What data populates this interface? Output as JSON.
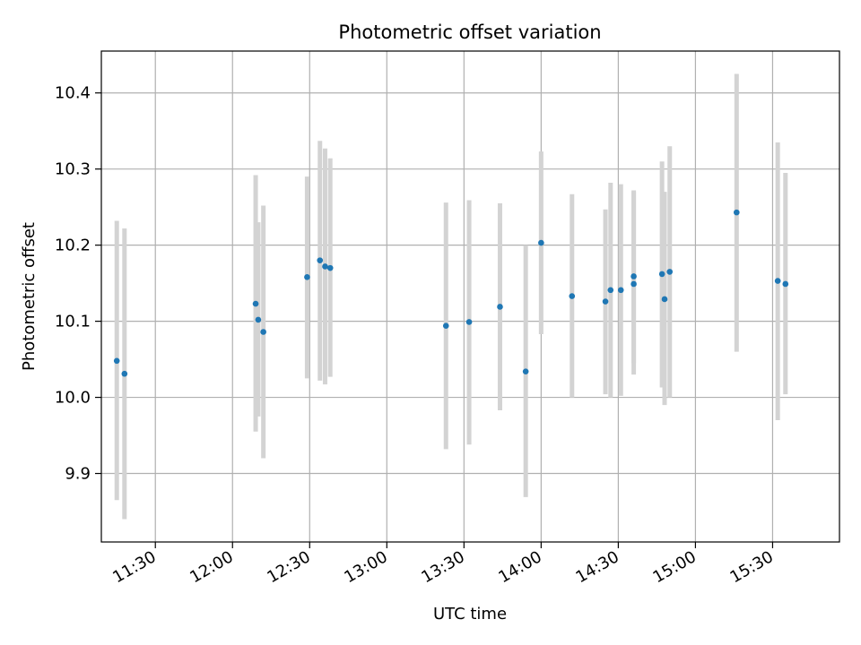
{
  "chart_data": {
    "type": "scatter",
    "title": "Photometric offset variation",
    "xlabel": "UTC time",
    "ylabel": "Photometric offset",
    "x_unit": "UTC time (HH:MM)",
    "xlim": [
      "11:09",
      "15:56"
    ],
    "ylim": [
      9.81,
      10.455
    ],
    "grid": true,
    "x_ticks": [
      "11:30",
      "12:00",
      "12:30",
      "13:00",
      "13:30",
      "14:00",
      "14:30",
      "15:00",
      "15:30"
    ],
    "y_ticks": [
      9.9,
      10.0,
      10.1,
      10.2,
      10.3,
      10.4
    ],
    "y_tick_labels": [
      "9.9",
      "10.0",
      "10.1",
      "10.2",
      "10.3",
      "10.4"
    ],
    "marker_color": "#1f77b4",
    "errorbar_color": "#d3d3d3",
    "points": [
      {
        "x": "11:15",
        "y": 10.048,
        "ylo": 9.865,
        "yhi": 10.232
      },
      {
        "x": "11:18",
        "y": 10.031,
        "ylo": 9.84,
        "yhi": 10.222
      },
      {
        "x": "12:09",
        "y": 10.123,
        "ylo": 9.955,
        "yhi": 10.292
      },
      {
        "x": "12:10",
        "y": 10.102,
        "ylo": 9.975,
        "yhi": 10.23
      },
      {
        "x": "12:12",
        "y": 10.086,
        "ylo": 9.92,
        "yhi": 10.252
      },
      {
        "x": "12:29",
        "y": 10.158,
        "ylo": 10.025,
        "yhi": 10.29
      },
      {
        "x": "12:34",
        "y": 10.18,
        "ylo": 10.022,
        "yhi": 10.337
      },
      {
        "x": "12:36",
        "y": 10.172,
        "ylo": 10.017,
        "yhi": 10.327
      },
      {
        "x": "12:38",
        "y": 10.17,
        "ylo": 10.027,
        "yhi": 10.314
      },
      {
        "x": "13:23",
        "y": 10.094,
        "ylo": 9.932,
        "yhi": 10.256
      },
      {
        "x": "13:32",
        "y": 10.099,
        "ylo": 9.938,
        "yhi": 10.259
      },
      {
        "x": "13:44",
        "y": 10.119,
        "ylo": 9.983,
        "yhi": 10.255
      },
      {
        "x": "13:54",
        "y": 10.034,
        "ylo": 9.869,
        "yhi": 10.2
      },
      {
        "x": "14:00",
        "y": 10.203,
        "ylo": 10.083,
        "yhi": 10.323
      },
      {
        "x": "14:12",
        "y": 10.133,
        "ylo": 10.0,
        "yhi": 10.267
      },
      {
        "x": "14:25",
        "y": 10.126,
        "ylo": 10.004,
        "yhi": 10.247
      },
      {
        "x": "14:27",
        "y": 10.141,
        "ylo": 10.0,
        "yhi": 10.282
      },
      {
        "x": "14:31",
        "y": 10.141,
        "ylo": 10.002,
        "yhi": 10.28
      },
      {
        "x": "14:36",
        "y": 10.159,
        "ylo": 10.045,
        "yhi": 10.272
      },
      {
        "x": "14:36",
        "y": 10.149,
        "ylo": 10.03,
        "yhi": 10.27
      },
      {
        "x": "14:47",
        "y": 10.162,
        "ylo": 10.013,
        "yhi": 10.31
      },
      {
        "x": "14:48",
        "y": 10.129,
        "ylo": 9.99,
        "yhi": 10.27
      },
      {
        "x": "14:50",
        "y": 10.165,
        "ylo": 10.0,
        "yhi": 10.33
      },
      {
        "x": "15:16",
        "y": 10.243,
        "ylo": 10.06,
        "yhi": 10.425
      },
      {
        "x": "15:32",
        "y": 10.153,
        "ylo": 9.97,
        "yhi": 10.335
      },
      {
        "x": "15:35",
        "y": 10.149,
        "ylo": 10.004,
        "yhi": 10.295
      }
    ]
  }
}
